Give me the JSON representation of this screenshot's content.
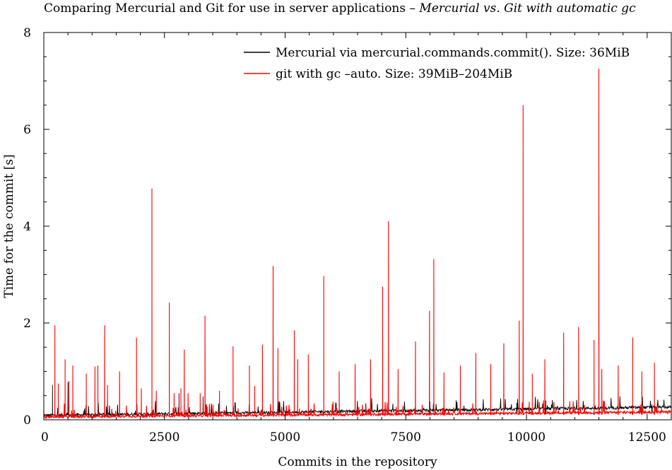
{
  "chart_data": {
    "type": "line",
    "title": "Comparing Mercurial and Git for use in server applications –",
    "subtitle": "Mercurial vs. Git with automatic gc",
    "xlabel": "Commits in the repository",
    "ylabel": "Time for the commit [s]",
    "xlim": [
      0,
      13000
    ],
    "ylim": [
      0,
      8
    ],
    "x_ticks": [
      "0",
      "2500",
      "5000",
      "7500",
      "10000",
      "12500"
    ],
    "y_ticks": [
      "0",
      "2",
      "4",
      "6",
      "8"
    ],
    "grid": false,
    "legend_position": "top-right",
    "colors": {
      "mercurial": "#000000",
      "git": "#ff0000"
    },
    "series": [
      {
        "name": "Mercurial via mercurial.commands.commit(). Size: 36MiB",
        "color": "#000000",
        "baseline_start": 0.08,
        "baseline_end": 0.25,
        "spikes": [
          [
            180,
            0.72
          ],
          [
            500,
            0.78
          ],
          [
            2800,
            0.55
          ],
          [
            3300,
            0.48
          ],
          [
            4700,
            0.3
          ],
          [
            8000,
            0.38
          ],
          [
            9800,
            0.35
          ],
          [
            10400,
            0.4
          ],
          [
            12600,
            0.32
          ]
        ]
      },
      {
        "name": "git with gc –auto. Size: 39MiB–204MiB",
        "color": "#ff0000",
        "baseline_start": 0.05,
        "baseline_end": 0.15,
        "spikes": [
          [
            230,
            1.95
          ],
          [
            300,
            0.75
          ],
          [
            440,
            1.25
          ],
          [
            520,
            0.8
          ],
          [
            600,
            1.12
          ],
          [
            880,
            0.95
          ],
          [
            1060,
            1.1
          ],
          [
            1120,
            1.12
          ],
          [
            1260,
            1.95
          ],
          [
            1320,
            0.72
          ],
          [
            1570,
            1.0
          ],
          [
            1920,
            1.7
          ],
          [
            2020,
            0.65
          ],
          [
            2240,
            4.78
          ],
          [
            2330,
            0.6
          ],
          [
            2600,
            2.42
          ],
          [
            2700,
            0.55
          ],
          [
            2840,
            0.65
          ],
          [
            2910,
            1.45
          ],
          [
            2990,
            0.55
          ],
          [
            3240,
            0.55
          ],
          [
            3340,
            2.15
          ],
          [
            3640,
            0.6
          ],
          [
            3920,
            1.52
          ],
          [
            4260,
            1.12
          ],
          [
            4370,
            0.7
          ],
          [
            4530,
            1.55
          ],
          [
            4750,
            3.18
          ],
          [
            4850,
            1.48
          ],
          [
            5190,
            1.85
          ],
          [
            5260,
            1.25
          ],
          [
            5480,
            1.35
          ],
          [
            5800,
            2.97
          ],
          [
            6120,
            1.0
          ],
          [
            6450,
            1.15
          ],
          [
            6770,
            1.25
          ],
          [
            7020,
            2.75
          ],
          [
            7140,
            4.1
          ],
          [
            7340,
            1.05
          ],
          [
            7700,
            1.62
          ],
          [
            7990,
            2.25
          ],
          [
            8080,
            3.32
          ],
          [
            8290,
            0.98
          ],
          [
            8630,
            1.12
          ],
          [
            8950,
            1.38
          ],
          [
            9260,
            1.15
          ],
          [
            9530,
            1.58
          ],
          [
            9850,
            2.05
          ],
          [
            9930,
            6.5
          ],
          [
            10120,
            0.95
          ],
          [
            10380,
            1.25
          ],
          [
            10770,
            1.8
          ],
          [
            11080,
            1.92
          ],
          [
            11400,
            1.65
          ],
          [
            11500,
            7.25
          ],
          [
            11560,
            1.05
          ],
          [
            11900,
            1.12
          ],
          [
            12200,
            1.7
          ],
          [
            12390,
            1.0
          ],
          [
            12650,
            1.18
          ]
        ]
      }
    ]
  }
}
